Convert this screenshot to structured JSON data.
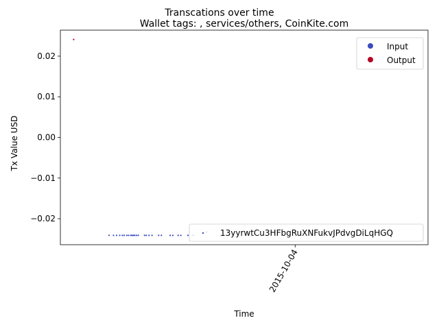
{
  "chart_data": {
    "type": "scatter",
    "suptitle": "Transcations over time",
    "title": "Wallet tags: , services/others, CoinKite.com",
    "xlabel": "Time",
    "ylabel": "Tx Value USD",
    "ylim": [
      -0.0264,
      0.0264
    ],
    "yticks": [
      0.02,
      0.01,
      0.0,
      -0.01,
      -0.02
    ],
    "ytick_labels": [
      "0.02",
      "0.01",
      "0.00",
      "−0.01",
      "−0.02"
    ],
    "xlim": [
      -53,
      30
    ],
    "xticks": [
      0
    ],
    "xtick_labels": [
      "2015-10-04"
    ],
    "legend": {
      "position": "top-right",
      "entries": [
        {
          "label": "Input",
          "color": "#3b4cc0"
        },
        {
          "label": "Output",
          "color": "#b40426"
        }
      ]
    },
    "address_legend": {
      "position": "bottom-right",
      "label": "13yyrwtCu3HFbgRuXNFukvJPdvgDiLqHGQ"
    },
    "series": [
      {
        "name": "Output",
        "color": "#b40426",
        "points": [
          {
            "x": -50.0,
            "y": 0.0241
          }
        ]
      },
      {
        "name": "Input",
        "color": "#3b4cc0",
        "points": [
          {
            "x": -42.0,
            "y": -0.0241
          },
          {
            "x": -41.0,
            "y": -0.0241
          },
          {
            "x": -40.3,
            "y": -0.0241
          },
          {
            "x": -39.6,
            "y": -0.0241
          },
          {
            "x": -39.0,
            "y": -0.0241
          },
          {
            "x": -38.6,
            "y": -0.0241
          },
          {
            "x": -38.0,
            "y": -0.0241
          },
          {
            "x": -37.6,
            "y": -0.0241
          },
          {
            "x": -37.1,
            "y": -0.0241
          },
          {
            "x": -36.8,
            "y": -0.0241
          },
          {
            "x": -36.5,
            "y": -0.0241
          },
          {
            "x": -36.2,
            "y": -0.0241
          },
          {
            "x": -35.8,
            "y": -0.0241
          },
          {
            "x": -35.4,
            "y": -0.0241
          },
          {
            "x": -34.0,
            "y": -0.0241
          },
          {
            "x": -33.6,
            "y": -0.0241
          },
          {
            "x": -33.0,
            "y": -0.0241
          },
          {
            "x": -32.3,
            "y": -0.0241
          },
          {
            "x": -30.8,
            "y": -0.0241
          },
          {
            "x": -30.2,
            "y": -0.0241
          },
          {
            "x": -28.2,
            "y": -0.0241
          },
          {
            "x": -27.6,
            "y": -0.0241
          },
          {
            "x": -26.4,
            "y": -0.0241
          },
          {
            "x": -25.8,
            "y": -0.0241
          },
          {
            "x": -24.2,
            "y": -0.0241
          },
          {
            "x": -23.0,
            "y": -0.0241
          },
          {
            "x": -20.0,
            "y": -0.0233
          },
          {
            "x": -16.8,
            "y": -0.0241
          },
          {
            "x": -16.2,
            "y": -0.0241
          },
          {
            "x": -15.5,
            "y": -0.0241
          },
          {
            "x": -14.8,
            "y": -0.0241
          }
        ]
      }
    ]
  }
}
